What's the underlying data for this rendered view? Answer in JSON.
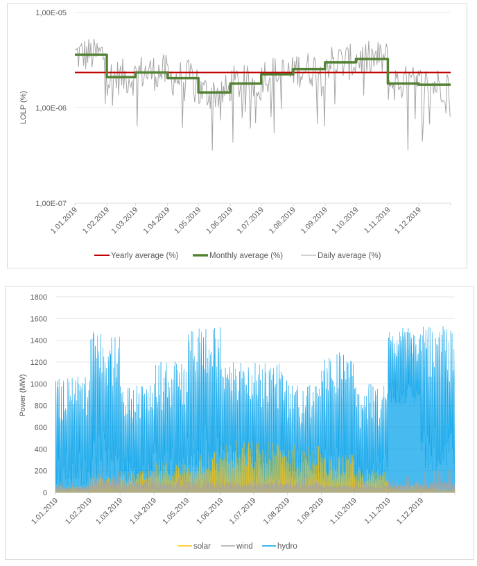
{
  "chart_data": [
    {
      "type": "line",
      "title": "",
      "xlabel": "",
      "ylabel": "LOLP (%)",
      "yscale": "log",
      "ylim": [
        1e-07,
        1e-05
      ],
      "y_ticks": [
        "1,00E-05",
        "1,00E-06",
        "1,00E-07"
      ],
      "y_tick_values": [
        1e-05,
        1e-06,
        1e-07
      ],
      "x_ticks": [
        "1.01.2019",
        "1.02.2019",
        "1.03.2019",
        "1.04.2019",
        "1.05.2019",
        "1.06.2019",
        "1.07.2019",
        "1.08.2019",
        "1.09.2019",
        "1.10.2019",
        "1.11.2019",
        "1.12.2019"
      ],
      "grid": true,
      "legend_position": "bottom",
      "series": [
        {
          "name": "Yearly average (%)",
          "color": "#c00000",
          "kind": "constant",
          "value": 2.35e-06
        },
        {
          "name": "Monthly average (%)",
          "color": "#548235",
          "kind": "monthly-step",
          "values": [
            3.6e-06,
            2.1e-06,
            2.35e-06,
            2.05e-06,
            1.45e-06,
            1.8e-06,
            2.25e-06,
            2.55e-06,
            3e-06,
            3.25e-06,
            1.8e-06,
            1.75e-06
          ]
        },
        {
          "name": "Daily average (%)",
          "color": "#a6a6a6",
          "kind": "daily",
          "monthly_reference": [
            3.6e-06,
            2.1e-06,
            2.35e-06,
            2.05e-06,
            1.45e-06,
            1.8e-06,
            2.25e-06,
            2.55e-06,
            3e-06,
            3.25e-06,
            1.8e-06,
            1.75e-06
          ],
          "approx_range": [
            3e-07,
            5.3e-06
          ]
        }
      ]
    },
    {
      "type": "area",
      "title": "",
      "xlabel": "",
      "ylabel": "Power (MW)",
      "ylim": [
        0,
        1800
      ],
      "y_ticks": [
        "0",
        "200",
        "400",
        "600",
        "800",
        "1000",
        "1200",
        "1400",
        "1600",
        "1800"
      ],
      "y_tick_values": [
        0,
        200,
        400,
        600,
        800,
        1000,
        1200,
        1400,
        1600,
        1800
      ],
      "x_ticks": [
        "1.01.2019",
        "1.02.2019",
        "1.03.2019",
        "1.04.2019",
        "1.05.2019",
        "1.06.2019",
        "1.07.2019",
        "1.08.2019",
        "1.09.2019",
        "1.10.2019",
        "1.11.2019",
        "1.12.2019"
      ],
      "grid": true,
      "legend_position": "bottom",
      "series": [
        {
          "name": "solar",
          "color": "#ffc000",
          "monthly_peak_approx": [
            60,
            150,
            200,
            280,
            400,
            480,
            480,
            450,
            350,
            220,
            80,
            50
          ]
        },
        {
          "name": "wind",
          "color": "#a5a5a5",
          "monthly_peak_approx": [
            80,
            250,
            200,
            200,
            200,
            200,
            180,
            150,
            120,
            100,
            170,
            200
          ]
        },
        {
          "name": "hydro",
          "color": "#00a0e9",
          "monthly_peak_approx": [
            1100,
            1480,
            1000,
            1220,
            1520,
            1200,
            1200,
            1000,
            1300,
            1000,
            1520,
            1530
          ],
          "monthly_low_approx": [
            60,
            100,
            80,
            100,
            150,
            150,
            100,
            80,
            80,
            60,
            800,
            200
          ]
        }
      ]
    }
  ]
}
